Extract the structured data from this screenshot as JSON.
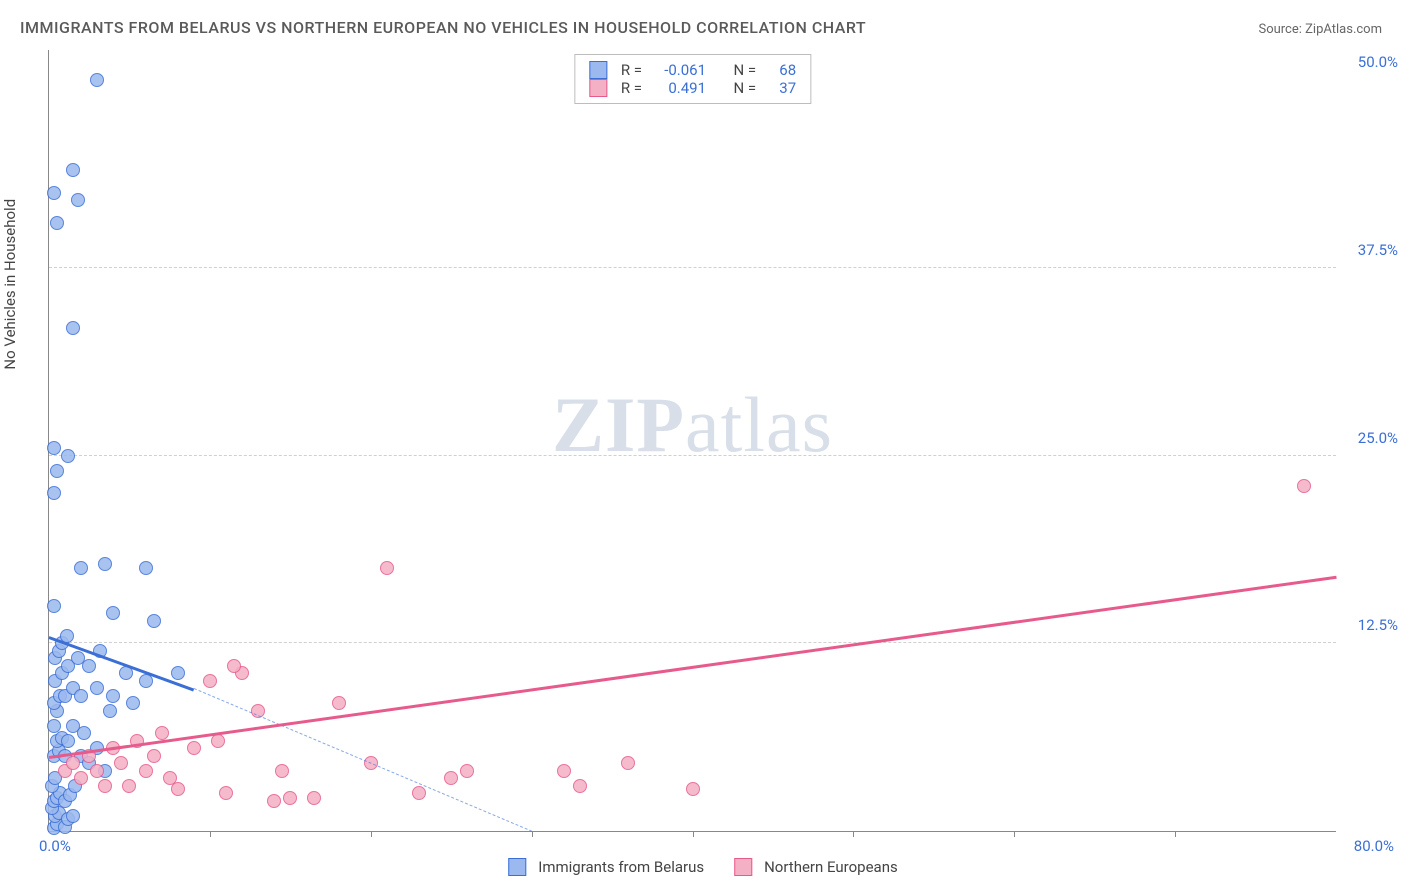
{
  "title": "IMMIGRANTS FROM BELARUS VS NORTHERN EUROPEAN NO VEHICLES IN HOUSEHOLD CORRELATION CHART",
  "source": "Source: ZipAtlas.com",
  "y_axis_label": "No Vehicles in Household",
  "watermark_zip": "ZIP",
  "watermark_atlas": "atlas",
  "chart": {
    "type": "scatter",
    "xlim": [
      0,
      80
    ],
    "ylim": [
      0,
      52
    ],
    "x_origin_label": "0.0%",
    "x_max_label": "80.0%",
    "y_ticks": [
      {
        "v": 12.5,
        "label": "12.5%"
      },
      {
        "v": 25.0,
        "label": "25.0%"
      },
      {
        "v": 37.5,
        "label": "37.5%"
      },
      {
        "v": 50.0,
        "label": "50.0%"
      }
    ],
    "y_gridlines": [
      12.5,
      25.0,
      37.5
    ],
    "x_ticks": [
      10,
      20,
      30,
      40,
      50,
      60,
      70
    ],
    "background_color": "#ffffff",
    "grid_color": "#d0d0d0",
    "axis_color": "#888888",
    "point_radius": 7,
    "point_border_width": 1.5,
    "point_fill_opacity": 0.25,
    "series": [
      {
        "name": "Immigrants from Belarus",
        "color": "#3b6fd6",
        "fill": "#9bb9ef",
        "R": "-0.061",
        "N": "68",
        "trend": {
          "x1": 0,
          "y1": 13.0,
          "x2": 9,
          "y2": 9.5,
          "dash_to_x": 30,
          "dash_to_y": 0
        },
        "points": [
          [
            0.3,
            0.2
          ],
          [
            0.5,
            0.5
          ],
          [
            0.4,
            1.0
          ],
          [
            0.6,
            1.2
          ],
          [
            0.2,
            1.5
          ],
          [
            1.0,
            0.3
          ],
          [
            1.2,
            0.8
          ],
          [
            1.5,
            1.0
          ],
          [
            0.3,
            2.0
          ],
          [
            0.5,
            2.2
          ],
          [
            0.7,
            2.5
          ],
          [
            0.2,
            3.0
          ],
          [
            1.0,
            2.0
          ],
          [
            1.3,
            2.4
          ],
          [
            1.6,
            3.0
          ],
          [
            0.4,
            3.5
          ],
          [
            0.3,
            5.0
          ],
          [
            0.6,
            5.3
          ],
          [
            0.5,
            6.0
          ],
          [
            0.8,
            6.2
          ],
          [
            0.3,
            7.0
          ],
          [
            1.0,
            5.0
          ],
          [
            1.2,
            6.0
          ],
          [
            1.5,
            7.0
          ],
          [
            2.0,
            5.0
          ],
          [
            2.2,
            6.5
          ],
          [
            2.5,
            4.5
          ],
          [
            3.0,
            5.5
          ],
          [
            3.5,
            4.0
          ],
          [
            3.8,
            8.0
          ],
          [
            0.5,
            8.0
          ],
          [
            0.3,
            8.5
          ],
          [
            0.7,
            9.0
          ],
          [
            1.0,
            9.0
          ],
          [
            1.5,
            9.5
          ],
          [
            2.0,
            9.0
          ],
          [
            3.0,
            9.5
          ],
          [
            4.0,
            9.0
          ],
          [
            4.8,
            10.5
          ],
          [
            5.2,
            8.5
          ],
          [
            6.0,
            10.0
          ],
          [
            8.0,
            10.5
          ],
          [
            0.4,
            10.0
          ],
          [
            0.8,
            10.5
          ],
          [
            1.2,
            11.0
          ],
          [
            1.8,
            11.5
          ],
          [
            2.5,
            11.0
          ],
          [
            3.2,
            12.0
          ],
          [
            4.0,
            14.5
          ],
          [
            6.5,
            14.0
          ],
          [
            0.3,
            15.0
          ],
          [
            2.0,
            17.5
          ],
          [
            3.5,
            17.8
          ],
          [
            6.0,
            17.5
          ],
          [
            0.3,
            22.5
          ],
          [
            1.2,
            25.0
          ],
          [
            0.5,
            24.0
          ],
          [
            0.3,
            25.5
          ],
          [
            1.5,
            33.5
          ],
          [
            0.5,
            40.5
          ],
          [
            1.8,
            42.0
          ],
          [
            0.3,
            42.5
          ],
          [
            1.5,
            44.0
          ],
          [
            3.0,
            50.0
          ],
          [
            0.4,
            11.5
          ],
          [
            0.6,
            12.0
          ],
          [
            0.8,
            12.5
          ],
          [
            1.1,
            13.0
          ]
        ]
      },
      {
        "name": "Northern Europeans",
        "color": "#e75a8c",
        "fill": "#f4b0c5",
        "R": "0.491",
        "N": "37",
        "trend": {
          "x1": 0,
          "y1": 5.0,
          "x2": 80,
          "y2": 17.0
        },
        "points": [
          [
            1.0,
            4.0
          ],
          [
            1.5,
            4.5
          ],
          [
            2.0,
            3.5
          ],
          [
            2.5,
            5.0
          ],
          [
            3.0,
            4.0
          ],
          [
            3.5,
            3.0
          ],
          [
            4.0,
            5.5
          ],
          [
            4.5,
            4.5
          ],
          [
            5.0,
            3.0
          ],
          [
            5.5,
            6.0
          ],
          [
            6.0,
            4.0
          ],
          [
            6.5,
            5.0
          ],
          [
            7.0,
            6.5
          ],
          [
            7.5,
            3.5
          ],
          [
            8.0,
            2.8
          ],
          [
            9.0,
            5.5
          ],
          [
            10.0,
            10.0
          ],
          [
            10.5,
            6.0
          ],
          [
            11.0,
            2.5
          ],
          [
            12.0,
            10.5
          ],
          [
            13.0,
            8.0
          ],
          [
            14.0,
            2.0
          ],
          [
            14.5,
            4.0
          ],
          [
            15.0,
            2.2
          ],
          [
            16.5,
            2.2
          ],
          [
            18.0,
            8.5
          ],
          [
            20.0,
            4.5
          ],
          [
            21.0,
            17.5
          ],
          [
            23.0,
            2.5
          ],
          [
            25.0,
            3.5
          ],
          [
            26.0,
            4.0
          ],
          [
            32.0,
            4.0
          ],
          [
            33.0,
            3.0
          ],
          [
            36.0,
            4.5
          ],
          [
            40.0,
            2.8
          ],
          [
            78.0,
            23.0
          ],
          [
            11.5,
            11.0
          ]
        ]
      }
    ]
  },
  "legend_top": {
    "r_label": "R =",
    "n_label": "N ="
  },
  "legend_bottom_labels": [
    "Immigrants from Belarus",
    "Northern Europeans"
  ]
}
